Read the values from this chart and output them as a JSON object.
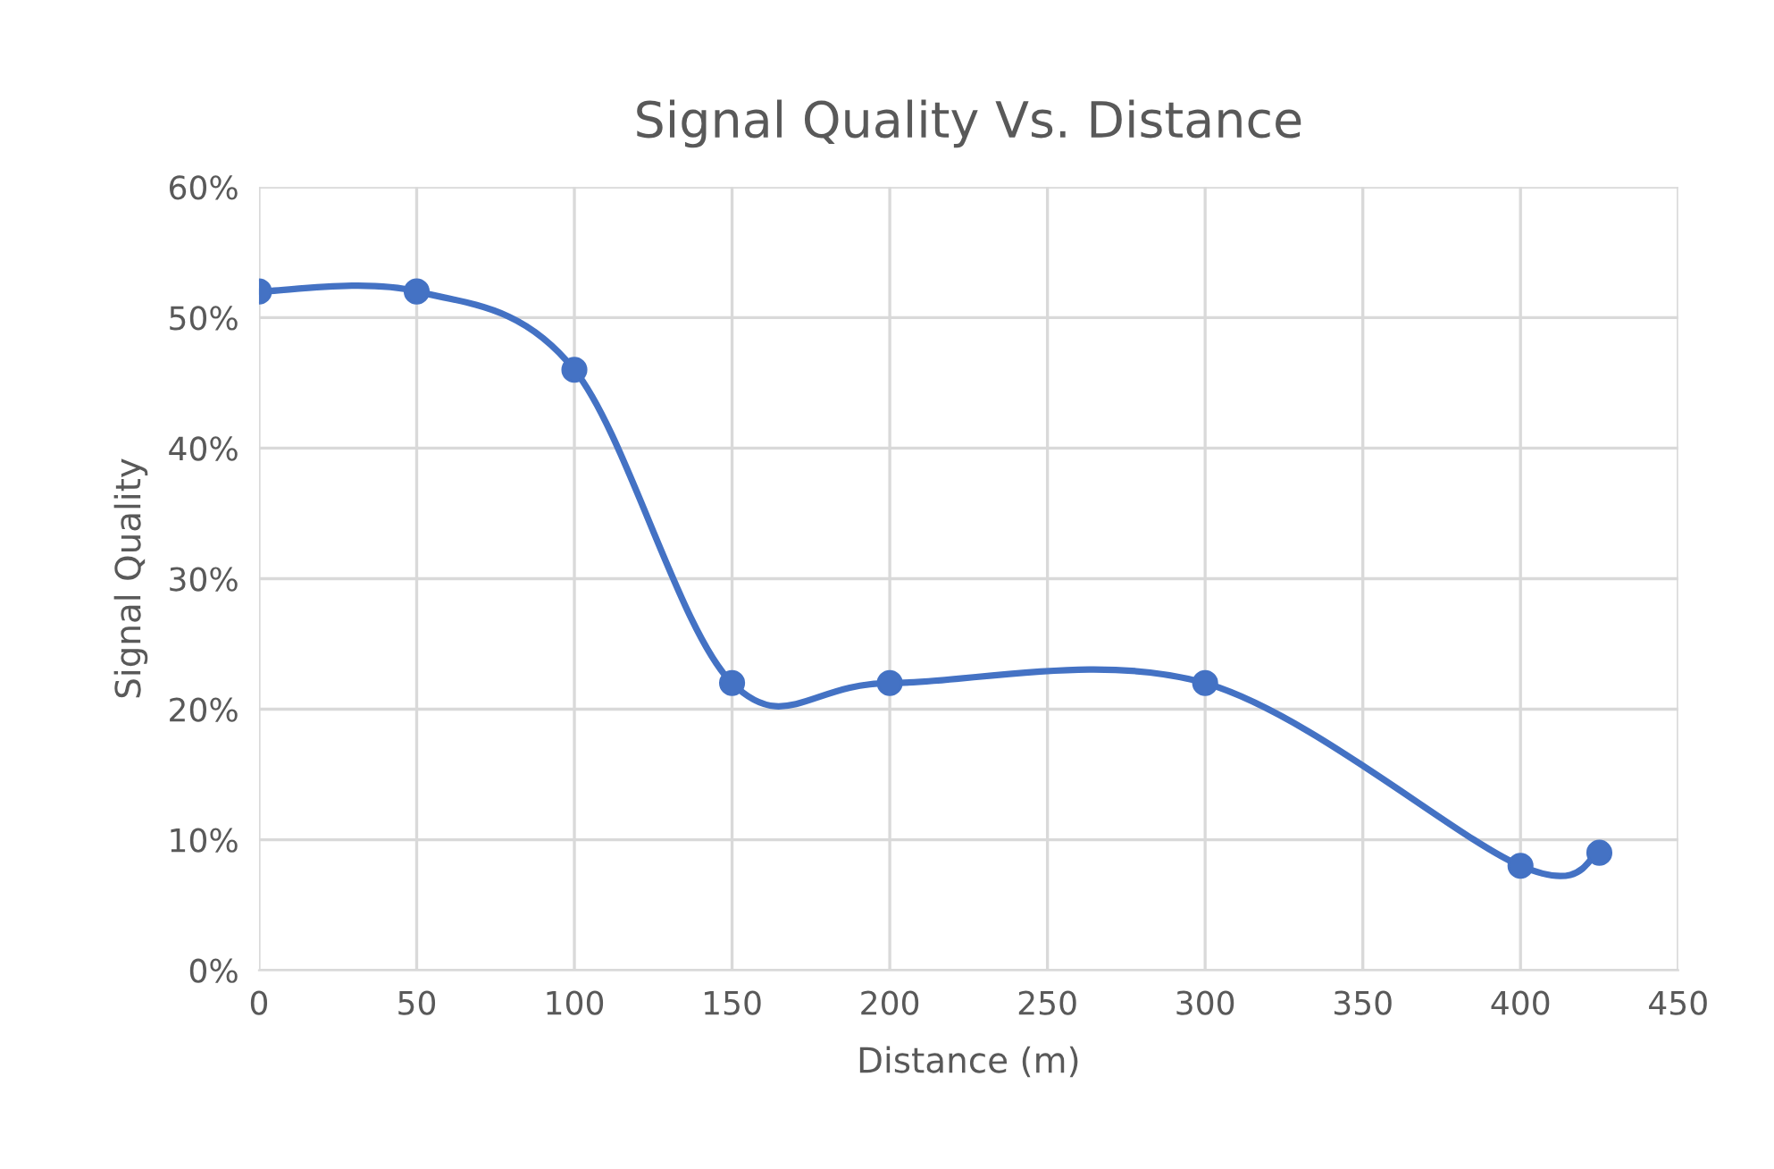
{
  "chart_data": {
    "type": "line",
    "title": "Signal Quality Vs. Distance",
    "xlabel": "Distance (m)",
    "ylabel": "Signal Quality",
    "x": [
      0,
      50,
      100,
      150,
      200,
      300,
      400,
      425
    ],
    "series": [
      {
        "color": "#4472c4",
        "values": [
          52,
          52,
          46,
          22,
          22,
          22,
          8,
          9
        ]
      }
    ],
    "xlim": [
      0,
      450
    ],
    "xticks": [
      0,
      50,
      100,
      150,
      200,
      250,
      300,
      350,
      400,
      450
    ],
    "ylim": [
      0,
      60
    ],
    "yticks": [
      {
        "value": 0,
        "label": "0%"
      },
      {
        "value": 10,
        "label": "10%"
      },
      {
        "value": 20,
        "label": "20%"
      },
      {
        "value": 30,
        "label": "30%"
      },
      {
        "value": 40,
        "label": "40%"
      },
      {
        "value": 50,
        "label": "50%"
      },
      {
        "value": 60,
        "label": "60%"
      }
    ],
    "grid": true,
    "marker": "circle",
    "line_style": "solid"
  }
}
